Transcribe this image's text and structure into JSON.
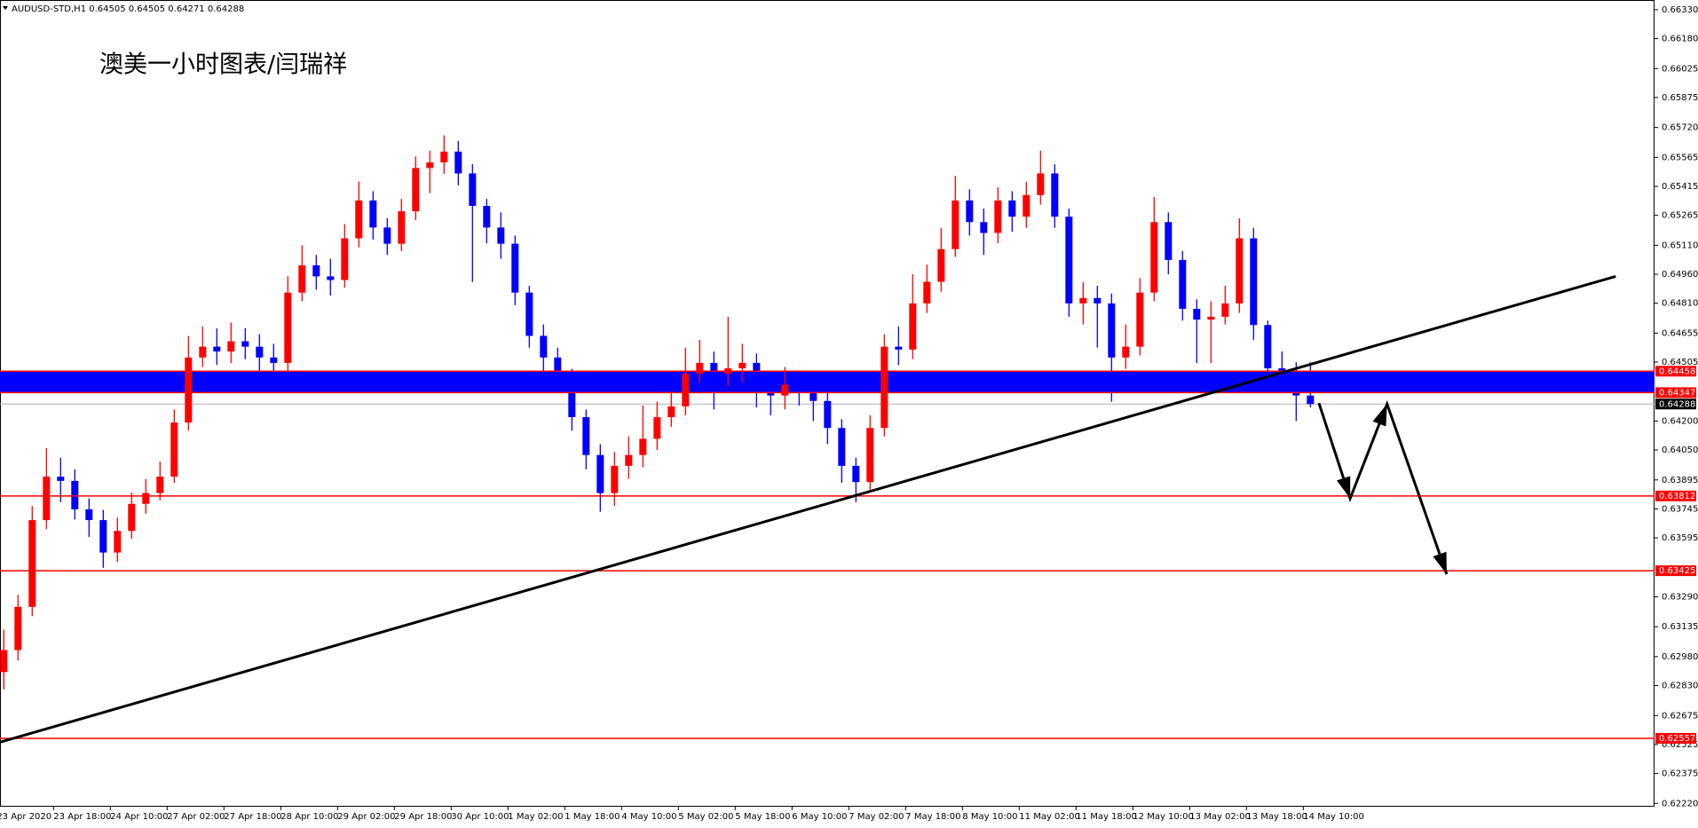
{
  "chart_data": {
    "type": "candlestick",
    "header": "AUDUSD-STD,H1  0.64505 0.64505 0.64271 0.64288",
    "title": "澳美一小时图表/闫瑞祥",
    "categories": [
      "23 Apr 2020",
      null,
      null,
      null,
      "23 Apr 18:00",
      null,
      null,
      null,
      "24 Apr 10:00",
      null,
      null,
      null,
      "27 Apr 02:00",
      null,
      null,
      null,
      "27 Apr 18:00",
      null,
      null,
      null,
      "28 Apr 10:00",
      null,
      null,
      null,
      "29 Apr 02:00",
      null,
      null,
      null,
      "29 Apr 18:00",
      null,
      null,
      null,
      "30 Apr 10:00",
      null,
      null,
      null,
      "1 May 02:00",
      null,
      null,
      null,
      "1 May 18:00",
      null,
      null,
      null,
      "4 May 10:00",
      null,
      null,
      null,
      "5 May 02:00",
      null,
      null,
      null,
      "5 May 18:00",
      null,
      null,
      null,
      "6 May 10:00",
      null,
      null,
      null,
      "7 May 02:00",
      null,
      null,
      null,
      "7 May 18:00",
      null,
      null,
      null,
      "8 May 10:00",
      null,
      null,
      null,
      "11 May 02:00",
      null,
      null,
      null,
      "11 May 18:00",
      null,
      null,
      null,
      "12 May 10:00",
      null,
      null,
      null,
      "13 May 02:00",
      null,
      null,
      null,
      "13 May 18:00",
      null,
      null,
      null,
      "14 May 10:00"
    ],
    "open": [
      0.629,
      0.63014,
      0.63238,
      0.63687,
      0.63912,
      0.6389,
      0.63743,
      0.63687,
      0.63519,
      0.63631,
      0.63771,
      0.63827,
      0.63912,
      0.64192,
      0.64529,
      0.64585,
      0.6456,
      0.64613,
      0.64585,
      0.64529,
      0.64501,
      0.64865,
      0.65006,
      0.64949,
      0.6493,
      0.65146,
      0.65342,
      0.65202,
      0.65118,
      0.65286,
      0.6551,
      0.65539,
      0.65595,
      0.65482,
      0.65314,
      0.65202,
      0.65118,
      0.64865,
      0.64641,
      0.64529,
      0.64417,
      0.6422,
      0.64024,
      0.63827,
      0.63968,
      0.64024,
      0.64108,
      0.6422,
      0.64276,
      0.64445,
      0.64501,
      0.64445,
      0.64473,
      0.64501,
      0.6436,
      0.64332,
      0.64388,
      0.6436,
      0.64304,
      0.64164,
      0.63968,
      0.63884,
      0.64164,
      0.64585,
      0.6457,
      0.64809,
      0.64921,
      0.6509,
      0.65342,
      0.6523,
      0.65174,
      0.65342,
      0.65258,
      0.6537,
      0.65482,
      0.65258,
      0.64809,
      0.64837,
      0.64809,
      0.64529,
      0.64585,
      0.64865,
      0.6523,
      0.65034,
      0.64781,
      0.64725,
      0.6474,
      0.64809,
      0.65146,
      0.64697,
      0.64473,
      0.64417,
      0.64332
    ],
    "high": [
      0.6312,
      0.633,
      0.6376,
      0.6406,
      0.6401,
      0.6395,
      0.638,
      0.6374,
      0.637,
      0.6383,
      0.639,
      0.6399,
      0.6426,
      0.6464,
      0.6469,
      0.6468,
      0.6471,
      0.6468,
      0.6465,
      0.646,
      0.6495,
      0.6511,
      0.6506,
      0.6504,
      0.6522,
      0.6544,
      0.6539,
      0.6525,
      0.6535,
      0.6557,
      0.656,
      0.6568,
      0.6565,
      0.6553,
      0.6535,
      0.6528,
      0.6516,
      0.649,
      0.647,
      0.6458,
      0.6447,
      0.6426,
      0.6408,
      0.6404,
      0.6412,
      0.6428,
      0.643,
      0.6435,
      0.6458,
      0.6462,
      0.6456,
      0.6474,
      0.646,
      0.6455,
      0.6442,
      0.6448,
      0.6446,
      0.6444,
      0.6435,
      0.6421,
      0.6401,
      0.6423,
      0.6465,
      0.6469,
      0.6496,
      0.6501,
      0.652,
      0.6547,
      0.654,
      0.653,
      0.6541,
      0.6539,
      0.6544,
      0.656,
      0.6553,
      0.653,
      0.6492,
      0.649,
      0.6486,
      0.647,
      0.6494,
      0.6536,
      0.6528,
      0.6508,
      0.6483,
      0.6482,
      0.649,
      0.6525,
      0.652,
      0.6472,
      0.6456,
      0.64505,
      0.64505
    ],
    "low": [
      0.6281,
      0.6296,
      0.6319,
      0.6364,
      0.6378,
      0.6369,
      0.636,
      0.6344,
      0.6347,
      0.6359,
      0.6372,
      0.6379,
      0.6388,
      0.6415,
      0.6448,
      0.6449,
      0.645,
      0.6452,
      0.644,
      0.6437,
      0.6446,
      0.6482,
      0.6488,
      0.6485,
      0.6489,
      0.651,
      0.6514,
      0.6506,
      0.6508,
      0.6524,
      0.6538,
      0.6548,
      0.6542,
      0.6492,
      0.6512,
      0.6504,
      0.648,
      0.6458,
      0.6446,
      0.6435,
      0.6415,
      0.6395,
      0.6373,
      0.6376,
      0.639,
      0.6396,
      0.6405,
      0.6417,
      0.6423,
      0.644,
      0.6426,
      0.6438,
      0.644,
      0.6427,
      0.6423,
      0.6426,
      0.6428,
      0.642,
      0.6408,
      0.6388,
      0.6378,
      0.6384,
      0.6412,
      0.6449,
      0.6452,
      0.6476,
      0.6487,
      0.6505,
      0.6516,
      0.6506,
      0.6512,
      0.6518,
      0.652,
      0.6532,
      0.652,
      0.6474,
      0.647,
      0.6458,
      0.643,
      0.6447,
      0.6454,
      0.6482,
      0.6496,
      0.6472,
      0.645,
      0.645,
      0.647,
      0.6476,
      0.6462,
      0.644,
      0.6436,
      0.642,
      0.64271
    ],
    "close": [
      0.63014,
      0.63238,
      0.63687,
      0.63912,
      0.6389,
      0.63743,
      0.63687,
      0.63519,
      0.63631,
      0.63771,
      0.63827,
      0.63912,
      0.64192,
      0.64529,
      0.64585,
      0.6456,
      0.64613,
      0.64585,
      0.64529,
      0.64501,
      0.64865,
      0.65006,
      0.64949,
      0.6493,
      0.65146,
      0.65342,
      0.65202,
      0.65118,
      0.65286,
      0.6551,
      0.65539,
      0.65595,
      0.65482,
      0.65314,
      0.65202,
      0.65118,
      0.64865,
      0.64641,
      0.64529,
      0.64417,
      0.6422,
      0.64024,
      0.63827,
      0.63968,
      0.64024,
      0.64108,
      0.6422,
      0.64276,
      0.64445,
      0.64501,
      0.64445,
      0.64473,
      0.64501,
      0.6436,
      0.64332,
      0.64388,
      0.6436,
      0.64304,
      0.64164,
      0.63968,
      0.63884,
      0.64164,
      0.64585,
      0.6457,
      0.64809,
      0.64921,
      0.6509,
      0.65342,
      0.6523,
      0.65174,
      0.65342,
      0.65258,
      0.6537,
      0.65482,
      0.65258,
      0.64809,
      0.64837,
      0.64809,
      0.64529,
      0.64585,
      0.64865,
      0.6523,
      0.65034,
      0.64781,
      0.64725,
      0.6474,
      0.64809,
      0.65146,
      0.64697,
      0.64473,
      0.64417,
      0.64332,
      0.64288
    ],
    "up_color": "#ff0000",
    "down_color": "#0000ff",
    "ylim": [
      0.62203,
      0.6638
    ],
    "yticks": [
      {
        "value": 0.6633,
        "label": "0.66330"
      },
      {
        "value": 0.6618,
        "label": "0.66180"
      },
      0.66025,
      0.65875,
      {
        "value": 0.6572,
        "label": "0.65720"
      },
      0.65565,
      0.65415,
      0.65265,
      {
        "value": 0.6511,
        "label": "0.65110"
      },
      {
        "value": 0.6496,
        "label": "0.64960"
      },
      {
        "value": 0.6481,
        "label": "0.64810"
      },
      0.64655,
      0.64505,
      {
        "value": 0.642,
        "label": "0.64200"
      },
      {
        "value": 0.6405,
        "label": "0.64050"
      },
      0.63895,
      0.63745,
      0.63595,
      {
        "value": 0.6329,
        "label": "0.63290"
      },
      0.63135,
      {
        "value": 0.6298,
        "label": "0.62980"
      },
      {
        "value": 0.6283,
        "label": "0.62830"
      },
      0.62675,
      0.62525,
      0.62375,
      {
        "value": 0.6222,
        "label": "0.62220"
      }
    ],
    "band": {
      "values": [
        0.64458,
        0.64347
      ],
      "color": "#0000ff",
      "edge_color": "#ff0000"
    },
    "levels": [
      0.63812,
      0.63425,
      0.62557
    ],
    "level_color": "#ff0000",
    "current_price": 0.64288,
    "trendline": {
      "x": [
        -0.27,
        113.5
      ],
      "y": [
        0.62537,
        0.64949
      ],
      "color": "#000000"
    },
    "projection": {
      "x": [
        92.6,
        94.8,
        97.4,
        101.6
      ],
      "y": [
        0.64293,
        0.63799,
        0.64288,
        0.63407
      ],
      "color": "#000000"
    }
  }
}
